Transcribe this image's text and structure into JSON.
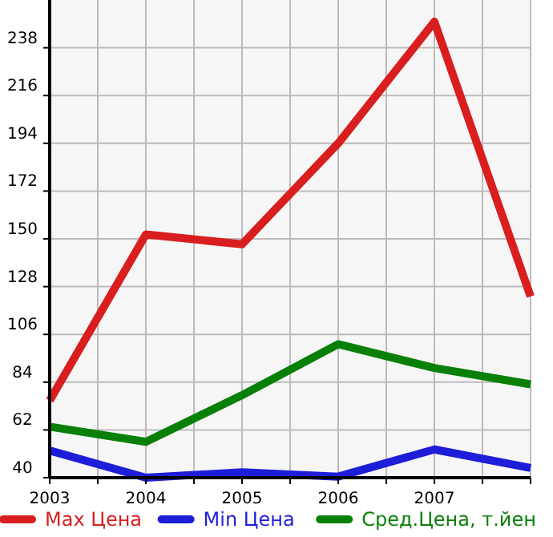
{
  "chart_data": {
    "type": "line",
    "x": [
      2003,
      2004,
      2005,
      2006,
      2007,
      2008
    ],
    "xlim": [
      2003,
      2008
    ],
    "xticks": [
      2003,
      {
        "value": 2003.5,
        "label": null
      },
      2004,
      {
        "value": 2004.5,
        "label": null
      },
      2005,
      {
        "value": 2005.5,
        "label": null
      },
      2006,
      {
        "value": 2006.5,
        "label": null
      },
      2007,
      {
        "value": 2007.5,
        "label": null
      },
      {
        "value": 2008,
        "label": null
      }
    ],
    "ylim": [
      40,
      260
    ],
    "yticks": [
      40,
      62,
      84,
      106,
      128,
      150,
      172,
      194,
      216,
      238
    ],
    "grid": true,
    "legend": "bottom",
    "marker": "none",
    "line_style": "solid",
    "series": [
      {
        "name": "Max Цена",
        "color": "#d81e1e",
        "values": [
          75.5,
          152,
          147.5,
          194,
          250,
          123.5
        ]
      },
      {
        "name": "Min Цена",
        "color": "#1e1ed8",
        "values": [
          52.5,
          40,
          42.5,
          40.5,
          53,
          44.5
        ]
      },
      {
        "name": "Сред.Цена, т.йен",
        "color": "#088008",
        "values": [
          63.5,
          56.5,
          78,
          101.5,
          90.5,
          83
        ]
      }
    ]
  }
}
